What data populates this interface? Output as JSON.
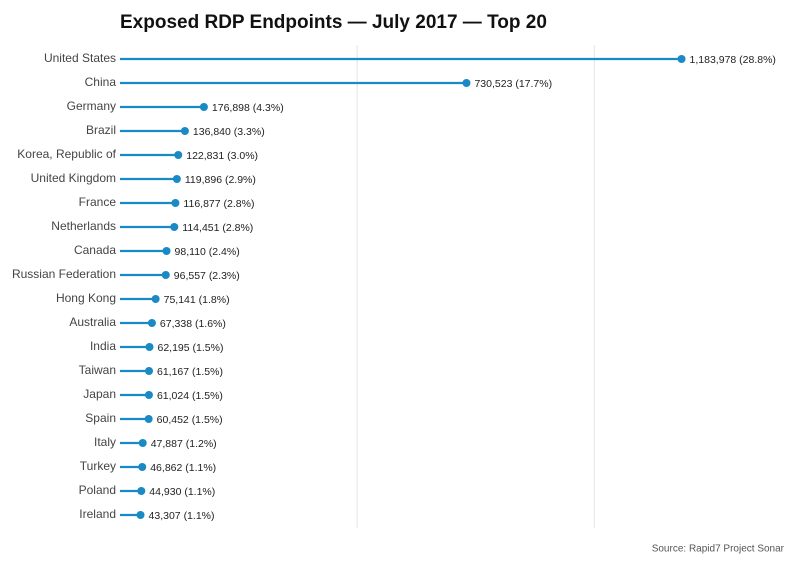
{
  "chart_data": {
    "type": "lollipop",
    "title": "Exposed RDP Endpoints — July 2017 — Top 20",
    "categories": [
      "United States",
      "China",
      "Germany",
      "Brazil",
      "Korea, Republic of",
      "United Kingdom",
      "France",
      "Netherlands",
      "Canada",
      "Russian Federation",
      "Hong Kong",
      "Australia",
      "India",
      "Taiwan",
      "Japan",
      "Spain",
      "Italy",
      "Turkey",
      "Poland",
      "Ireland"
    ],
    "values": [
      1183978,
      730523,
      176898,
      136840,
      122831,
      119896,
      116877,
      114451,
      98110,
      96557,
      75141,
      67338,
      62195,
      61167,
      61024,
      60452,
      47887,
      46862,
      44930,
      43307
    ],
    "value_labels": [
      "1,183,978 (28.8%)",
      "730,523 (17.7%)",
      "176,898 (4.3%)",
      "136,840 (3.3%)",
      "122,831 (3.0%)",
      "119,896 (2.9%)",
      "116,877 (2.8%)",
      "114,451 (2.8%)",
      "98,110 (2.4%)",
      "96,557 (2.3%)",
      "75,141 (1.8%)",
      "67,338 (1.6%)",
      "62,195 (1.5%)",
      "61,167 (1.5%)",
      "61,024 (1.5%)",
      "60,452 (1.5%)",
      "47,887 (1.2%)",
      "46,862 (1.1%)",
      "44,930 (1.1%)",
      "43,307 (1.1%)"
    ],
    "color": "#1a8ac6",
    "xlim": [
      0,
      1400000
    ],
    "xticks": [
      500000,
      1000000
    ],
    "tick_labels": false,
    "grid": true,
    "source": "Source: Rapid7 Project Sonar"
  }
}
